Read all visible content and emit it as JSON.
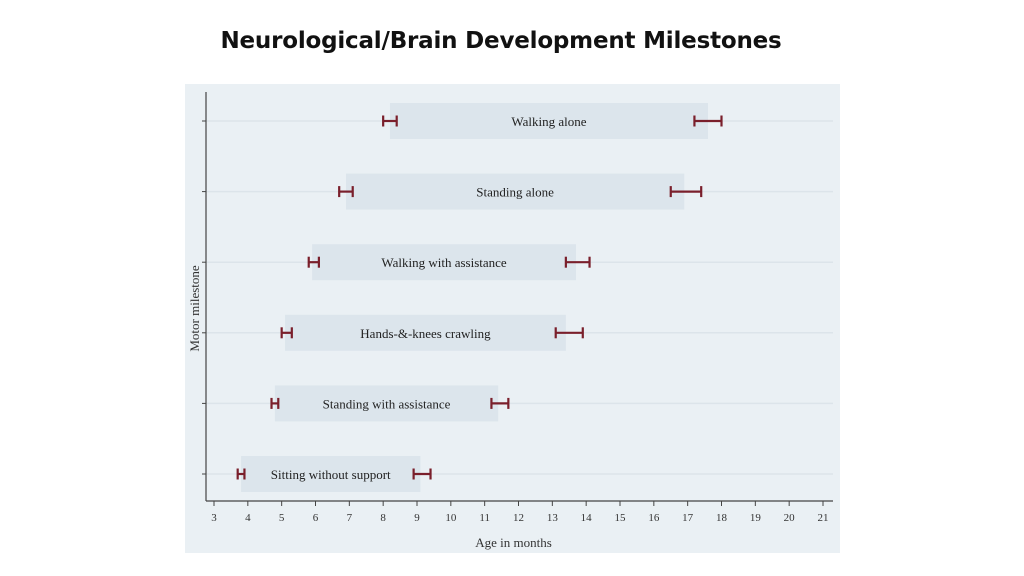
{
  "page": {
    "title": "Neurological/Brain Development Milestones"
  },
  "chart_data": {
    "type": "range-bar",
    "title": "",
    "xlabel": "Age in months",
    "ylabel": "Motor milestone",
    "xlim": [
      3,
      21
    ],
    "x_ticks": [
      3,
      4,
      5,
      6,
      7,
      8,
      9,
      10,
      11,
      12,
      13,
      14,
      15,
      16,
      17,
      18,
      19,
      20,
      21
    ],
    "grid": "horizontal",
    "colors": {
      "bar": "#dce5ec",
      "error_bar": "#7a1f2b",
      "grid": "#dce4ea",
      "axis": "#444444"
    },
    "milestones": [
      {
        "label": "Walking alone",
        "start": 8.2,
        "end": 17.6,
        "start_err": [
          8.0,
          8.4
        ],
        "end_err": [
          17.2,
          18.0
        ]
      },
      {
        "label": "Standing alone",
        "start": 6.9,
        "end": 16.9,
        "start_err": [
          6.7,
          7.1
        ],
        "end_err": [
          16.5,
          17.4
        ]
      },
      {
        "label": "Walking with assistance",
        "start": 5.9,
        "end": 13.7,
        "start_err": [
          5.8,
          6.1
        ],
        "end_err": [
          13.4,
          14.1
        ]
      },
      {
        "label": "Hands-&-knees crawling",
        "start": 5.1,
        "end": 13.4,
        "start_err": [
          5.0,
          5.3
        ],
        "end_err": [
          13.1,
          13.9
        ]
      },
      {
        "label": "Standing with assistance",
        "start": 4.8,
        "end": 11.4,
        "start_err": [
          4.7,
          4.9
        ],
        "end_err": [
          11.2,
          11.7
        ]
      },
      {
        "label": "Sitting without support",
        "start": 3.8,
        "end": 9.1,
        "start_err": [
          3.7,
          3.9
        ],
        "end_err": [
          8.9,
          9.4
        ]
      }
    ]
  }
}
